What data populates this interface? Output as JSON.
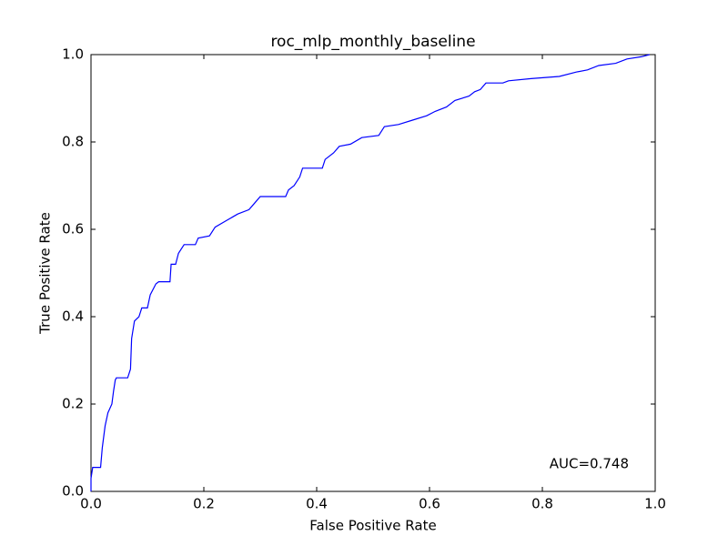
{
  "chart_data": {
    "type": "line",
    "title": "roc_mlp_monthly_baseline",
    "x_label": "False Positive Rate",
    "y_label": "True Positive Rate",
    "annotation": "AUC=0.748",
    "xlim": [
      0,
      1
    ],
    "ylim": [
      0,
      1
    ],
    "xticks": [
      {
        "value": 0,
        "label": "0.0"
      },
      0.2,
      0.4,
      0.6,
      0.8,
      {
        "value": 1,
        "label": "1.0"
      }
    ],
    "yticks": [
      {
        "value": 0,
        "label": "0.0"
      },
      0.2,
      0.4,
      0.6,
      0.8,
      {
        "value": 1,
        "label": "1.0"
      }
    ],
    "grid": false,
    "series": [
      {
        "color": "#0000ff",
        "x": [
          0,
          0,
          0.003,
          0.017,
          0.02,
          0.025,
          0.03,
          0.037,
          0.04,
          0.043,
          0.045,
          0.065,
          0.07,
          0.072,
          0.077,
          0.085,
          0.09,
          0.1,
          0.105,
          0.115,
          0.12,
          0.14,
          0.142,
          0.15,
          0.155,
          0.165,
          0.185,
          0.19,
          0.21,
          0.22,
          0.24,
          0.26,
          0.28,
          0.29,
          0.3,
          0.345,
          0.35,
          0.36,
          0.37,
          0.375,
          0.41,
          0.415,
          0.43,
          0.44,
          0.46,
          0.48,
          0.51,
          0.52,
          0.545,
          0.57,
          0.595,
          0.61,
          0.63,
          0.645,
          0.67,
          0.68,
          0.69,
          0.7,
          0.73,
          0.74,
          0.78,
          0.83,
          0.86,
          0.88,
          0.9,
          0.93,
          0.95,
          0.975,
          0.99
        ],
        "values": [
          0,
          0.03,
          0.055,
          0.055,
          0.1,
          0.15,
          0.18,
          0.2,
          0.23,
          0.255,
          0.26,
          0.26,
          0.28,
          0.35,
          0.39,
          0.4,
          0.42,
          0.42,
          0.45,
          0.475,
          0.48,
          0.48,
          0.52,
          0.52,
          0.545,
          0.565,
          0.565,
          0.58,
          0.585,
          0.605,
          0.62,
          0.635,
          0.645,
          0.66,
          0.675,
          0.675,
          0.69,
          0.7,
          0.72,
          0.74,
          0.74,
          0.76,
          0.775,
          0.79,
          0.795,
          0.81,
          0.815,
          0.835,
          0.84,
          0.85,
          0.86,
          0.87,
          0.88,
          0.895,
          0.905,
          0.915,
          0.92,
          0.935,
          0.935,
          0.94,
          0.945,
          0.95,
          0.96,
          0.965,
          0.975,
          0.98,
          0.99,
          0.995,
          1.0
        ]
      }
    ]
  }
}
